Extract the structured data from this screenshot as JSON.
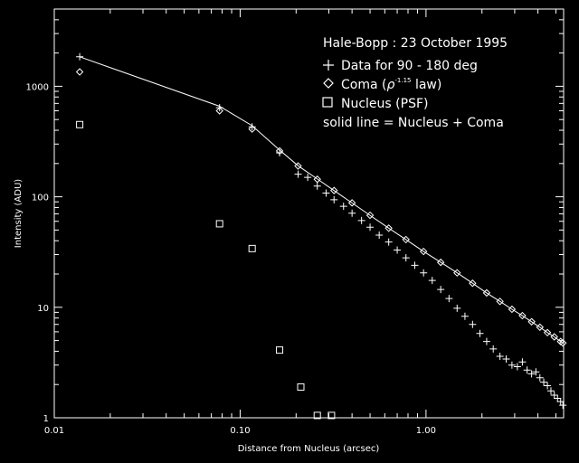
{
  "chart_data": {
    "type": "scatter",
    "xscale": "log",
    "yscale": "log",
    "xlim": [
      0.01,
      5.5
    ],
    "ylim": [
      1,
      5000
    ],
    "xlabel": "Distance from Nucleus (arcsec)",
    "ylabel": "Intensity (ADU)",
    "xticks": [
      {
        "value": 0.01,
        "label": "0.01"
      },
      {
        "value": 0.1,
        "label": "0.10"
      },
      {
        "value": 1,
        "label": "1.00"
      }
    ],
    "yticks": [
      {
        "value": 1,
        "label": "1"
      },
      {
        "value": 10,
        "label": "10"
      },
      {
        "value": 100,
        "label": "100"
      },
      {
        "value": 1000,
        "label": "1000"
      }
    ],
    "legend": {
      "position": "top-right",
      "title": "Hale-Bopp : 23 October 1995",
      "entries": [
        {
          "symbol": "plus",
          "label": "Data for 90 - 180 deg"
        },
        {
          "symbol": "diamond",
          "label_prefix": "Coma (",
          "label_rho": "ρ",
          "label_exp": "-1.15",
          "label_suffix": " law)"
        },
        {
          "symbol": "square",
          "label": "Nucleus (PSF)"
        },
        {
          "symbol": "none",
          "label": "solid line = Nucleus + Coma"
        }
      ]
    },
    "series": [
      {
        "name": "Data for 90 - 180 deg",
        "marker": "plus",
        "x": [
          0.0137,
          0.0775,
          0.116,
          0.163,
          0.205,
          0.231,
          0.26,
          0.29,
          0.32,
          0.36,
          0.4,
          0.45,
          0.5,
          0.56,
          0.63,
          0.7,
          0.78,
          0.87,
          0.97,
          1.08,
          1.2,
          1.33,
          1.47,
          1.62,
          1.78,
          1.95,
          2.12,
          2.3,
          2.5,
          2.7,
          2.9,
          3.1,
          3.3,
          3.5,
          3.7,
          3.9,
          4.1,
          4.3,
          4.5,
          4.7,
          4.9,
          5.1,
          5.3,
          5.45
        ],
        "y": [
          1850,
          640,
          430,
          250,
          160,
          150,
          125,
          108,
          94,
          82,
          71,
          61,
          53,
          45,
          39,
          33,
          28,
          24,
          20.5,
          17.5,
          14.5,
          12,
          9.8,
          8.3,
          7,
          5.8,
          4.9,
          4.2,
          3.6,
          3.4,
          3.0,
          2.9,
          3.2,
          2.7,
          2.5,
          2.6,
          2.3,
          2.1,
          1.95,
          1.75,
          1.6,
          1.5,
          1.4,
          1.3
        ]
      },
      {
        "name": "Coma (ρ-1.15 law)",
        "marker": "diamond",
        "x": [
          0.0137,
          0.0775,
          0.116,
          0.163,
          0.205,
          0.26,
          0.32,
          0.4,
          0.5,
          0.63,
          0.78,
          0.97,
          1.2,
          1.47,
          1.78,
          2.12,
          2.5,
          2.9,
          3.3,
          3.7,
          4.1,
          4.5,
          4.9,
          5.3,
          5.45
        ],
        "y": [
          1350,
          600,
          410,
          260,
          190,
          144,
          114,
          88,
          68,
          52,
          41,
          32,
          25.5,
          20.5,
          16.5,
          13.5,
          11.3,
          9.6,
          8.4,
          7.4,
          6.6,
          5.9,
          5.4,
          4.9,
          4.75
        ]
      },
      {
        "name": "Nucleus (PSF)",
        "marker": "square",
        "x": [
          0.0137,
          0.0775,
          0.116,
          0.163,
          0.212,
          0.26,
          0.31
        ],
        "y": [
          450,
          57,
          34,
          4.1,
          1.9,
          1.05,
          1.05
        ]
      },
      {
        "name": "Nucleus + Coma",
        "marker": "line",
        "x": [
          0.0137,
          0.0775,
          0.116,
          0.163,
          0.205,
          0.26,
          0.32,
          0.4,
          0.5,
          0.63,
          0.78,
          0.97,
          1.2,
          1.47,
          1.78,
          2.12,
          2.5,
          2.9,
          3.3,
          3.7,
          4.1,
          4.5,
          4.9,
          5.3,
          5.45
        ],
        "y": [
          1850,
          660,
          440,
          265,
          191,
          145,
          114,
          88,
          68,
          52,
          41,
          32,
          25.5,
          20.5,
          16.5,
          13.5,
          11.3,
          9.6,
          8.4,
          7.4,
          6.6,
          5.9,
          5.4,
          4.9,
          4.75
        ]
      }
    ]
  }
}
